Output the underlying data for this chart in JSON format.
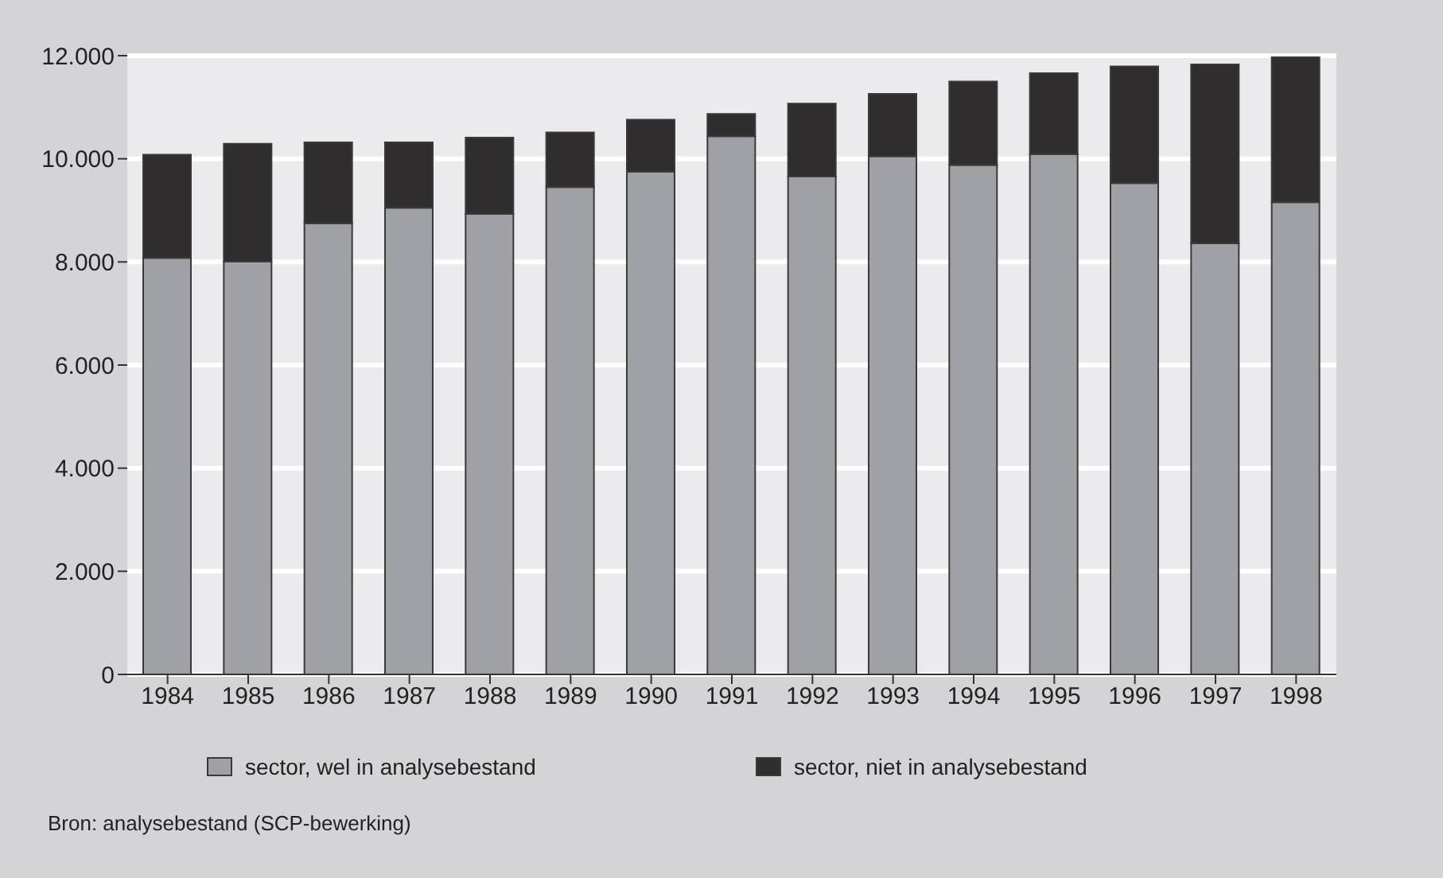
{
  "chart_data": {
    "type": "bar",
    "stacked": true,
    "categories": [
      "1984",
      "1985",
      "1986",
      "1987",
      "1988",
      "1989",
      "1990",
      "1991",
      "1992",
      "1993",
      "1994",
      "1995",
      "1996",
      "1997",
      "1998"
    ],
    "series": [
      {
        "name": "sector, wel in analysebestand",
        "color": "#a0a1a5",
        "values": [
          8080,
          8010,
          8750,
          9050,
          8930,
          9450,
          9750,
          10440,
          9660,
          10050,
          9880,
          10090,
          9530,
          8360,
          9160
        ]
      },
      {
        "name": "sector, niet in analysebestand",
        "color": "#2f2d2e",
        "values": [
          2000,
          2280,
          1570,
          1270,
          1480,
          1060,
          1010,
          430,
          1410,
          1210,
          1620,
          1570,
          2260,
          3470,
          2810
        ]
      }
    ],
    "ylim": [
      0,
      12000
    ],
    "yticks": [
      {
        "value": 0,
        "label": "0"
      },
      {
        "value": 2000,
        "label": "2.000"
      },
      {
        "value": 4000,
        "label": "4.000"
      },
      {
        "value": 6000,
        "label": "6.000"
      },
      {
        "value": 8000,
        "label": "8.000"
      },
      {
        "value": 10000,
        "label": "10.000"
      },
      {
        "value": 12000,
        "label": "12.000"
      }
    ],
    "grid": "y",
    "legend": "bottom",
    "annotations": [
      "Bron: analysebestand (SCP-bewerking)"
    ]
  }
}
